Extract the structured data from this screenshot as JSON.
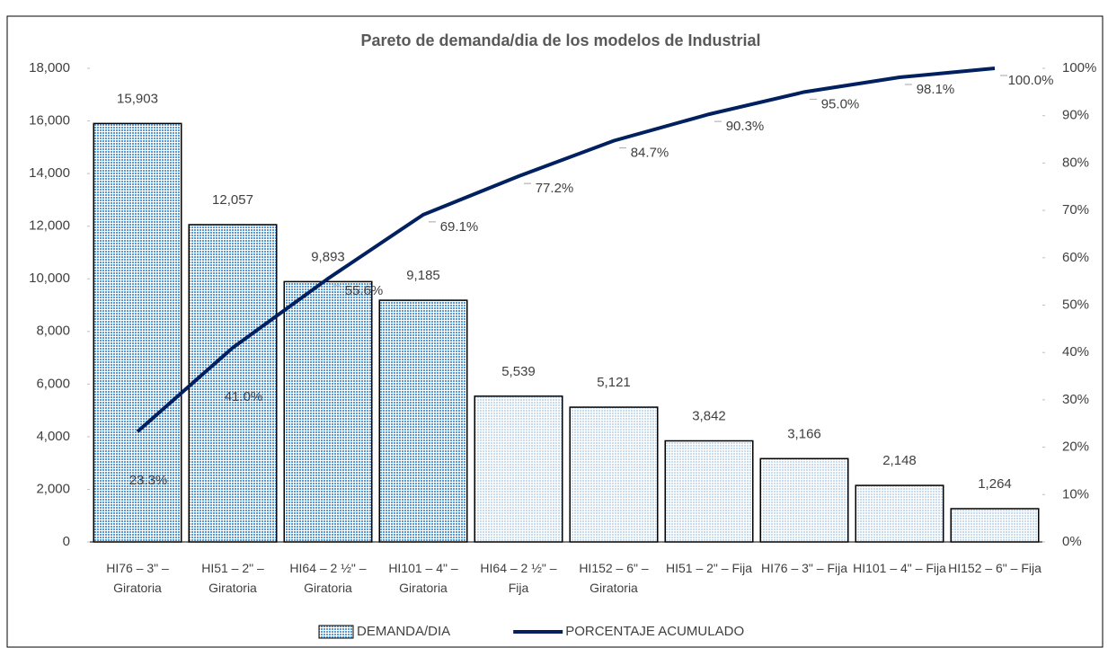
{
  "chart_data": {
    "type": "pareto",
    "title": "Pareto de demanda/dia de los modelos de Industrial",
    "categories": [
      "HI76 – 3\" – Giratoria",
      "HI51 – 2\" – Giratoria",
      "HI64 – 2 ½\" – Giratoria",
      "HI101 – 4\" – Giratoria",
      "HI64 – 2 ½\" – Fija",
      "HI152 – 6\" – Giratoria",
      "HI51 – 2\" – Fija",
      "HI76 – 3\" – Fija",
      "HI101 – 4\" – Fija",
      "HI152 – 6\" – Fija"
    ],
    "series": [
      {
        "name": "DEMANDA/DIA",
        "type": "bar",
        "color": "#5b9bd5",
        "point_colors": [
          "#5b9bd5",
          "#5b9bd5",
          "#5b9bd5",
          "#5b9bd5",
          "#c9dcee",
          "#c9dcee",
          "#c9dcee",
          "#c9dcee",
          "#c9dcee",
          "#c9dcee"
        ],
        "values": [
          15903,
          12057,
          9893,
          9185,
          5539,
          5121,
          3842,
          3166,
          2148,
          1264
        ],
        "value_labels": [
          "15,903",
          "12,057",
          "9,893",
          "9,185",
          "5,539",
          "5,121",
          "3,842",
          "3,166",
          "2,148",
          "1,264"
        ]
      },
      {
        "name": "PORCENTAJE ACUMULADO",
        "type": "line",
        "axis": "y2",
        "color": "#002060",
        "values": [
          23.3,
          41.0,
          55.6,
          69.1,
          77.2,
          84.7,
          90.3,
          95.0,
          98.1,
          100.0
        ],
        "value_labels": [
          "23.3%",
          "41.0%",
          "55.6%",
          "69.1%",
          "77.2%",
          "84.7%",
          "90.3%",
          "95.0%",
          "98.1%",
          "100.0%"
        ]
      }
    ],
    "ylim": [
      0,
      18000
    ],
    "yticks": [
      0,
      {
        "value": 2000,
        "label": "2,000"
      },
      {
        "value": 4000,
        "label": "4,000"
      },
      {
        "value": 6000,
        "label": "6,000"
      },
      {
        "value": 8000,
        "label": "8,000"
      },
      {
        "value": 10000,
        "label": "10,000"
      },
      {
        "value": 12000,
        "label": "12,000"
      },
      {
        "value": 14000,
        "label": "14,000"
      },
      {
        "value": 16000,
        "label": "16,000"
      },
      {
        "value": 18000,
        "label": "18,000"
      }
    ],
    "y2lim": [
      0,
      100
    ],
    "y2ticks": [
      {
        "value": 0,
        "label": "0%"
      },
      {
        "value": 10,
        "label": "10%"
      },
      {
        "value": 20,
        "label": "20%"
      },
      {
        "value": 30,
        "label": "30%"
      },
      {
        "value": 40,
        "label": "40%"
      },
      {
        "value": 50,
        "label": "50%"
      },
      {
        "value": 60,
        "label": "60%"
      },
      {
        "value": 70,
        "label": "70%"
      },
      {
        "value": 80,
        "label": "80%"
      },
      {
        "value": 90,
        "label": "90%"
      },
      {
        "value": 100,
        "label": "100%"
      }
    ],
    "grid": false,
    "legend": "bottom"
  }
}
